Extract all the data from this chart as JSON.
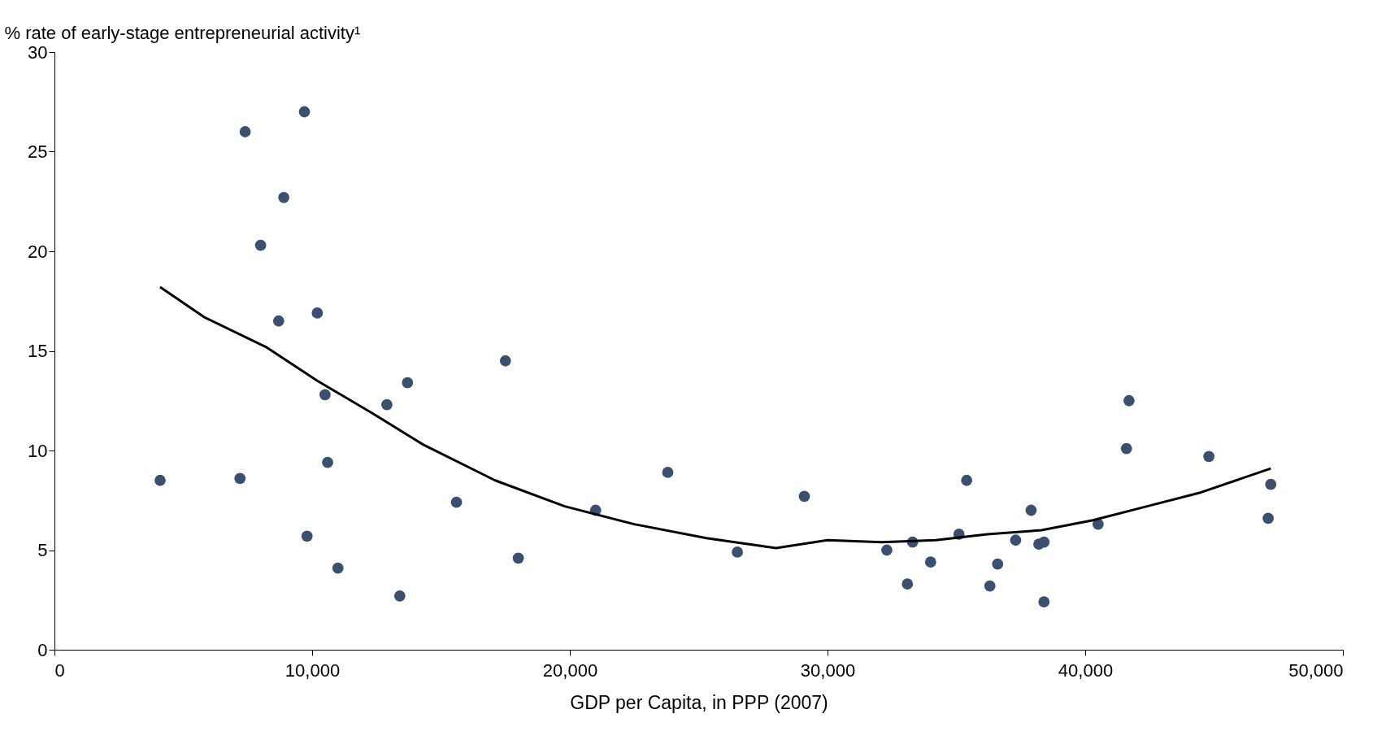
{
  "chart_data": {
    "type": "scatter",
    "ylabel": "% rate of early-stage entrepreneurial activity¹",
    "xlabel": "GDP per Capita, in PPP (2007)",
    "xlim": [
      0,
      50000
    ],
    "ylim": [
      0,
      30
    ],
    "xticks": [
      0,
      {
        "value": 10000,
        "label": "10,000"
      },
      {
        "value": 20000,
        "label": "20,000"
      },
      {
        "value": 30000,
        "label": "30,000"
      },
      {
        "value": 40000,
        "label": "40,000"
      },
      {
        "value": 50000,
        "label": "50,000"
      }
    ],
    "yticks": [
      0,
      5,
      10,
      15,
      20,
      25,
      30
    ],
    "grid": false,
    "marker": "circle",
    "series": [
      {
        "color": "#3b4f6f",
        "x": [
          4100,
          7200,
          7400,
          9700,
          8900,
          8000,
          8700,
          10200,
          10500,
          10600,
          9800,
          11000,
          12900,
          13700,
          13400,
          15600,
          17500,
          18000,
          21000,
          23800,
          26500,
          29100,
          32300,
          33100,
          33300,
          34000,
          35100,
          35400,
          36300,
          36600,
          37300,
          37900,
          38200,
          38400,
          38400,
          40500,
          41600,
          41700,
          44800,
          47100,
          47200
        ],
        "values": [
          8.5,
          8.6,
          26.0,
          27.0,
          22.7,
          20.3,
          16.5,
          16.9,
          12.8,
          9.4,
          5.7,
          4.1,
          12.3,
          13.4,
          2.7,
          7.4,
          14.5,
          4.6,
          7.0,
          8.9,
          4.9,
          7.7,
          5.0,
          3.3,
          5.4,
          4.4,
          5.8,
          8.5,
          3.2,
          4.3,
          5.5,
          7.0,
          5.3,
          5.4,
          2.4,
          6.3,
          10.1,
          12.5,
          9.7,
          6.6,
          8.3
        ]
      },
      {
        "type": "line",
        "color": "#000000",
        "marker": "none",
        "line_style": "solid",
        "x": [
          4100,
          5800,
          8200,
          10200,
          12300,
          14300,
          17100,
          19800,
          22500,
          25300,
          28000,
          30000,
          32100,
          34200,
          36200,
          38300,
          40300,
          42400,
          44500,
          47200
        ],
        "values": [
          18.2,
          16.7,
          15.2,
          13.5,
          11.9,
          10.3,
          8.5,
          7.2,
          6.3,
          5.6,
          5.1,
          5.5,
          5.4,
          5.5,
          5.8,
          6.0,
          6.5,
          7.2,
          7.9,
          9.1
        ]
      }
    ]
  }
}
